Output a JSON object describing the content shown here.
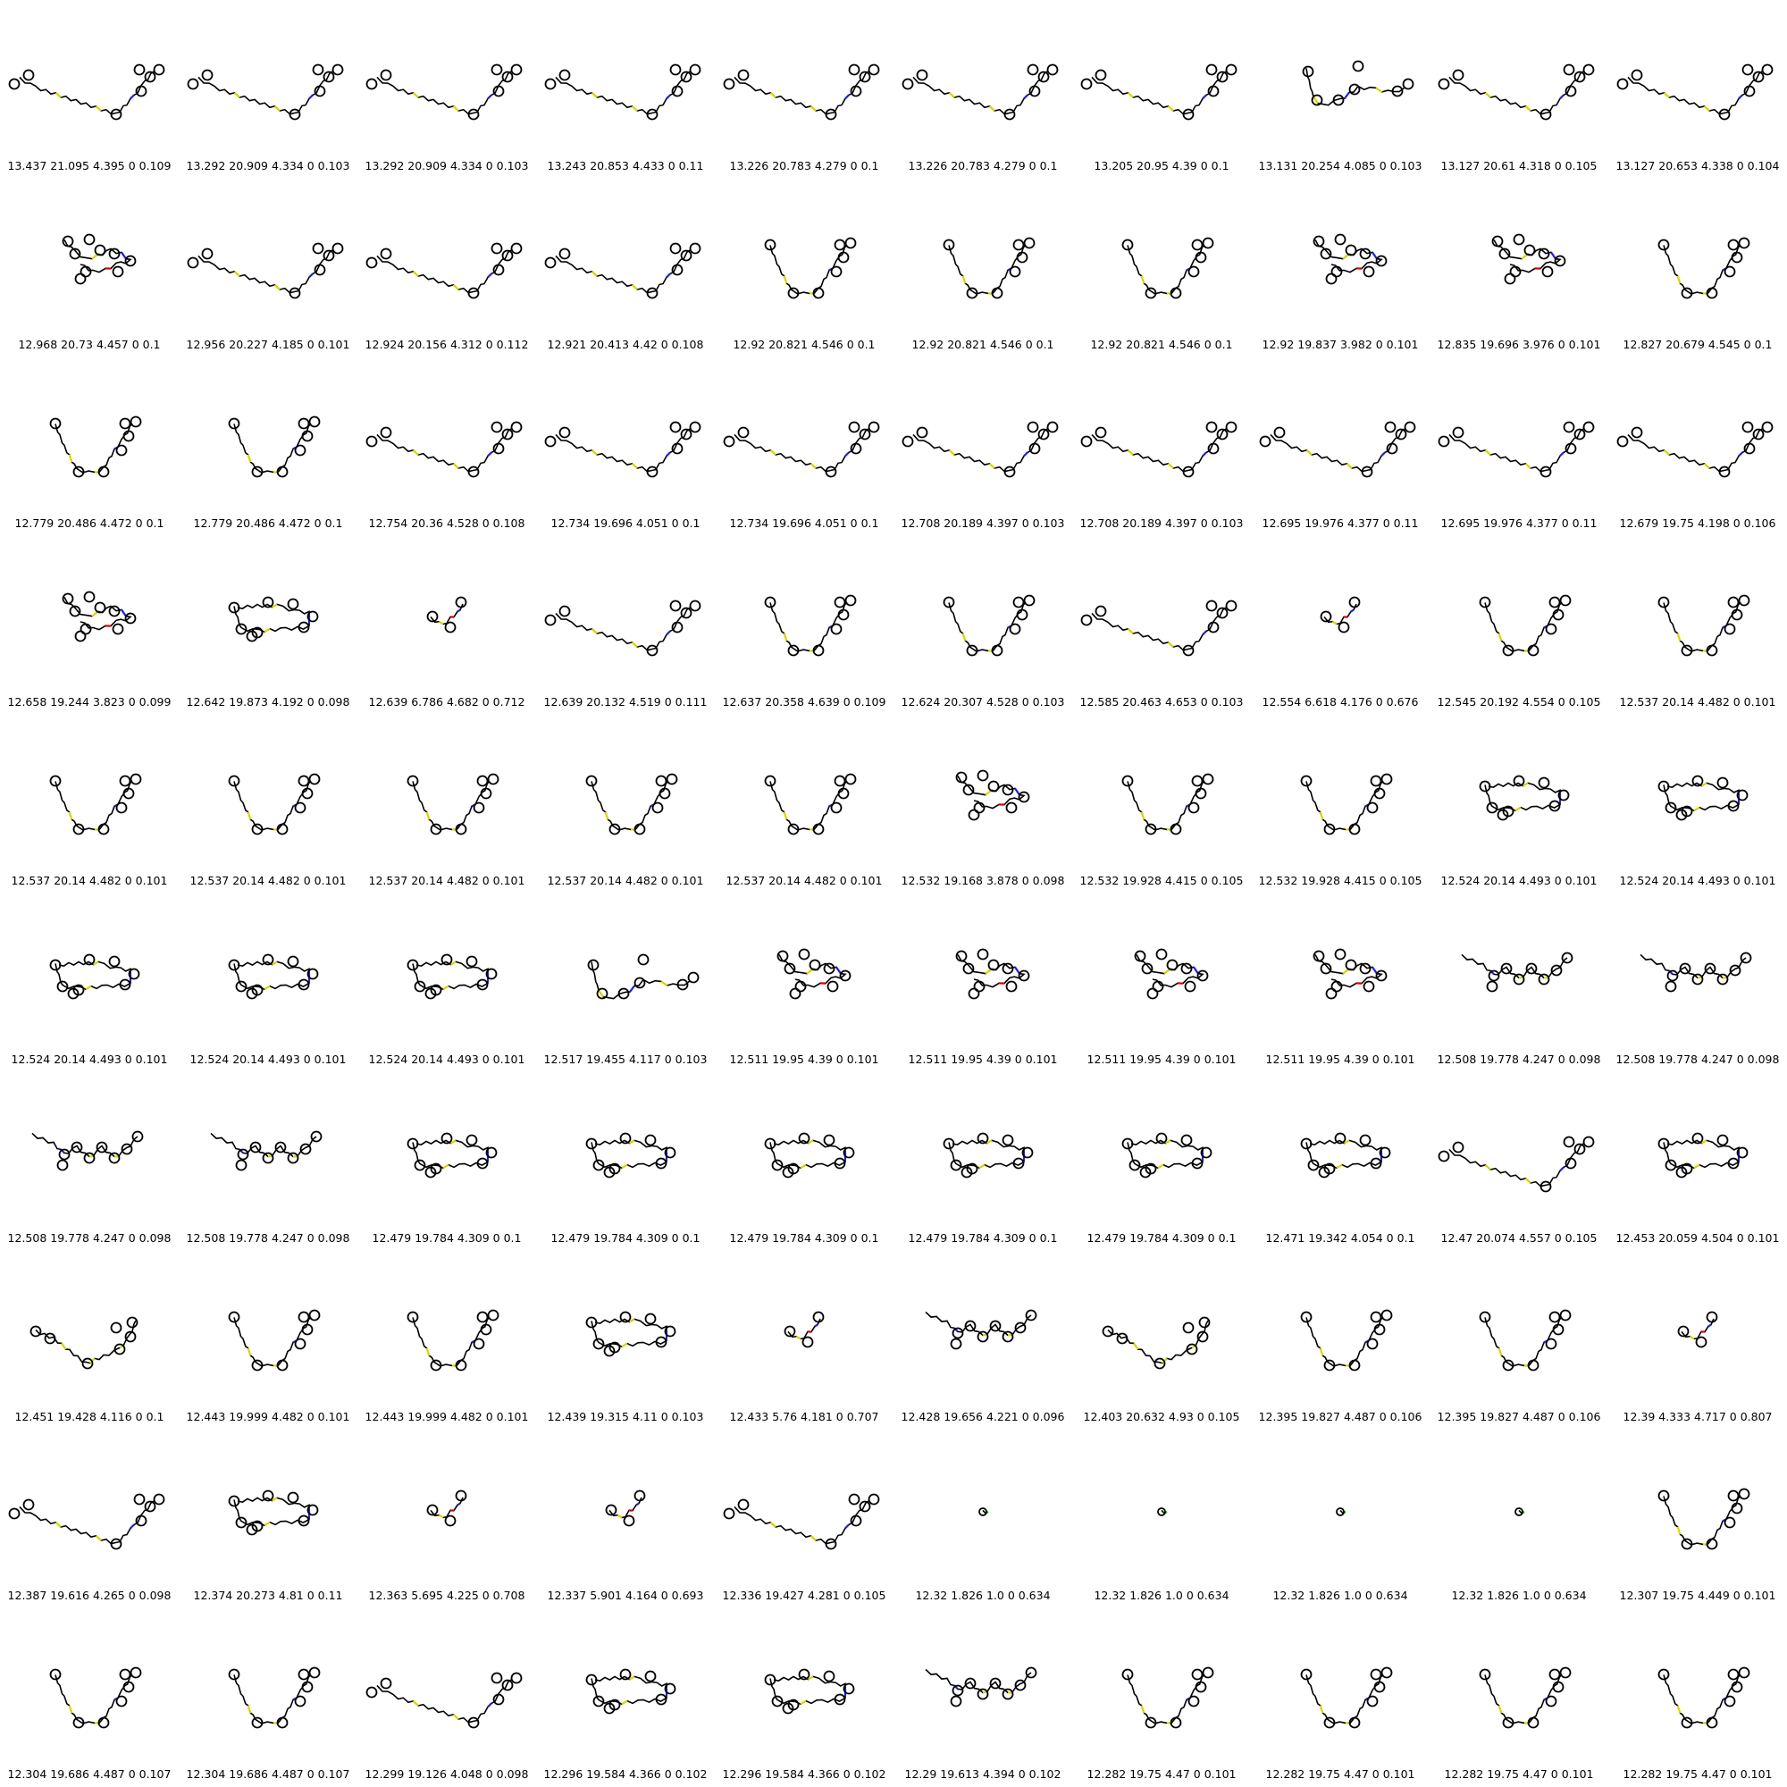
{
  "colors": {
    "bond": "#000000",
    "heteroatom_s": "#d6d600",
    "heteroatom_n": "#2020e0",
    "heteroatom_o": "#e00000",
    "heteroatom_cl": "#20c020",
    "background": "#ffffff"
  },
  "cells": [
    {
      "caption": "13.437 21.095 4.395 0 0.109",
      "shape": "line-v"
    },
    {
      "caption": "13.292 20.909 4.334 0 0.103",
      "shape": "line-v"
    },
    {
      "caption": "13.292 20.909 4.334 0 0.103",
      "shape": "line-v"
    },
    {
      "caption": "13.243 20.853 4.433 0 0.11",
      "shape": "line-v"
    },
    {
      "caption": "13.226 20.783 4.279 0 0.1",
      "shape": "line-v"
    },
    {
      "caption": "13.226 20.783 4.279 0 0.1",
      "shape": "line-v"
    },
    {
      "caption": "13.205 20.95 4.39 0 0.1",
      "shape": "line-v"
    },
    {
      "caption": "13.131 20.254 4.085 0 0.103",
      "shape": "loop"
    },
    {
      "caption": "13.127 20.61 4.318 0 0.105",
      "shape": "line-v"
    },
    {
      "caption": "13.127 20.653 4.338 0 0.104",
      "shape": "line-v"
    },
    {
      "caption": "12.968 20.73 4.457 0 0.1",
      "shape": "cluster"
    },
    {
      "caption": "12.956 20.227 4.185 0 0.101",
      "shape": "line-v"
    },
    {
      "caption": "12.924 20.156 4.312 0 0.112",
      "shape": "line-v"
    },
    {
      "caption": "12.921 20.413 4.42 0 0.108",
      "shape": "line-v"
    },
    {
      "caption": "12.92 20.821 4.546 0 0.1",
      "shape": "u"
    },
    {
      "caption": "12.92 20.821 4.546 0 0.1",
      "shape": "u"
    },
    {
      "caption": "12.92 20.821 4.546 0 0.1",
      "shape": "u"
    },
    {
      "caption": "12.92 19.837 3.982 0 0.101",
      "shape": "cluster"
    },
    {
      "caption": "12.835 19.696 3.976 0 0.101",
      "shape": "cluster"
    },
    {
      "caption": "12.827 20.679 4.545 0 0.1",
      "shape": "u"
    },
    {
      "caption": "12.779 20.486 4.472 0 0.1",
      "shape": "u"
    },
    {
      "caption": "12.779 20.486 4.472 0 0.1",
      "shape": "u"
    },
    {
      "caption": "12.754 20.36 4.528 0 0.108",
      "shape": "line-v"
    },
    {
      "caption": "12.734 19.696 4.051 0 0.1",
      "shape": "line-v"
    },
    {
      "caption": "12.734 19.696 4.051 0 0.1",
      "shape": "line-v"
    },
    {
      "caption": "12.708 20.189 4.397 0 0.103",
      "shape": "line-v"
    },
    {
      "caption": "12.708 20.189 4.397 0 0.103",
      "shape": "line-v"
    },
    {
      "caption": "12.695 19.976 4.377 0 0.11",
      "shape": "line-v"
    },
    {
      "caption": "12.695 19.976 4.377 0 0.11",
      "shape": "line-v"
    },
    {
      "caption": "12.679 19.75 4.198 0 0.106",
      "shape": "line-v"
    },
    {
      "caption": "12.658 19.244 3.823 0 0.099",
      "shape": "cluster"
    },
    {
      "caption": "12.642 19.873 4.192 0 0.098",
      "shape": "rect"
    },
    {
      "caption": "12.639 6.786 4.682 0 0.712",
      "shape": "small"
    },
    {
      "caption": "12.639 20.132 4.519 0 0.111",
      "shape": "line-v"
    },
    {
      "caption": "12.637 20.358 4.639 0 0.109",
      "shape": "u"
    },
    {
      "caption": "12.624 20.307 4.528 0 0.103",
      "shape": "u"
    },
    {
      "caption": "12.585 20.463 4.653 0 0.103",
      "shape": "line-v"
    },
    {
      "caption": "12.554 6.618 4.176 0 0.676",
      "shape": "small"
    },
    {
      "caption": "12.545 20.192 4.554 0 0.105",
      "shape": "u"
    },
    {
      "caption": "12.537 20.14 4.482 0 0.101",
      "shape": "u"
    },
    {
      "caption": "12.537 20.14 4.482 0 0.101",
      "shape": "u"
    },
    {
      "caption": "12.537 20.14 4.482 0 0.101",
      "shape": "u"
    },
    {
      "caption": "12.537 20.14 4.482 0 0.101",
      "shape": "u"
    },
    {
      "caption": "12.537 20.14 4.482 0 0.101",
      "shape": "u"
    },
    {
      "caption": "12.537 20.14 4.482 0 0.101",
      "shape": "u"
    },
    {
      "caption": "12.532 19.168 3.878 0 0.098",
      "shape": "cluster"
    },
    {
      "caption": "12.532 19.928 4.415 0 0.105",
      "shape": "u"
    },
    {
      "caption": "12.532 19.928 4.415 0 0.105",
      "shape": "u"
    },
    {
      "caption": "12.524 20.14 4.493 0 0.101",
      "shape": "rect"
    },
    {
      "caption": "12.524 20.14 4.493 0 0.101",
      "shape": "rect"
    },
    {
      "caption": "12.524 20.14 4.493 0 0.101",
      "shape": "rect"
    },
    {
      "caption": "12.524 20.14 4.493 0 0.101",
      "shape": "rect"
    },
    {
      "caption": "12.524 20.14 4.493 0 0.101",
      "shape": "rect"
    },
    {
      "caption": "12.517 19.455 4.117 0 0.103",
      "shape": "loop"
    },
    {
      "caption": "12.511 19.95 4.39 0 0.101",
      "shape": "cluster"
    },
    {
      "caption": "12.511 19.95 4.39 0 0.101",
      "shape": "cluster"
    },
    {
      "caption": "12.511 19.95 4.39 0 0.101",
      "shape": "cluster"
    },
    {
      "caption": "12.511 19.95 4.39 0 0.101",
      "shape": "cluster"
    },
    {
      "caption": "12.508 19.778 4.247 0 0.098",
      "shape": "zigzag"
    },
    {
      "caption": "12.508 19.778 4.247 0 0.098",
      "shape": "zigzag"
    },
    {
      "caption": "12.508 19.778 4.247 0 0.098",
      "shape": "zigzag"
    },
    {
      "caption": "12.508 19.778 4.247 0 0.098",
      "shape": "zigzag"
    },
    {
      "caption": "12.479 19.784 4.309 0 0.1",
      "shape": "rect"
    },
    {
      "caption": "12.479 19.784 4.309 0 0.1",
      "shape": "rect"
    },
    {
      "caption": "12.479 19.784 4.309 0 0.1",
      "shape": "rect"
    },
    {
      "caption": "12.479 19.784 4.309 0 0.1",
      "shape": "rect"
    },
    {
      "caption": "12.479 19.784 4.309 0 0.1",
      "shape": "rect"
    },
    {
      "caption": "12.471 19.342 4.054 0 0.1",
      "shape": "rect"
    },
    {
      "caption": "12.47 20.074 4.557 0 0.105",
      "shape": "line-v"
    },
    {
      "caption": "12.453 20.059 4.504 0 0.101",
      "shape": "rect"
    },
    {
      "caption": "12.451 19.428 4.116 0 0.1",
      "shape": "v"
    },
    {
      "caption": "12.443 19.999 4.482 0 0.101",
      "shape": "u"
    },
    {
      "caption": "12.443 19.999 4.482 0 0.101",
      "shape": "u"
    },
    {
      "caption": "12.439 19.315 4.11 0 0.103",
      "shape": "rect"
    },
    {
      "caption": "12.433 5.76 4.181 0 0.707",
      "shape": "small"
    },
    {
      "caption": "12.428 19.656 4.221 0 0.096",
      "shape": "zigzag"
    },
    {
      "caption": "12.403 20.632 4.93 0 0.105",
      "shape": "v"
    },
    {
      "caption": "12.395 19.827 4.487 0 0.106",
      "shape": "u"
    },
    {
      "caption": "12.395 19.827 4.487 0 0.106",
      "shape": "u"
    },
    {
      "caption": "12.39 4.333 4.717 0 0.807",
      "shape": "small"
    },
    {
      "caption": "12.387 19.616 4.265 0 0.098",
      "shape": "line-v"
    },
    {
      "caption": "12.374 20.273 4.81 0 0.11",
      "shape": "rect"
    },
    {
      "caption": "12.363 5.695 4.225 0 0.708",
      "shape": "small"
    },
    {
      "caption": "12.337 5.901 4.164 0 0.693",
      "shape": "small"
    },
    {
      "caption": "12.336 19.427 4.281 0 0.105",
      "shape": "line-v"
    },
    {
      "caption": "12.32 1.826 1.0 0 0.634",
      "shape": "dot"
    },
    {
      "caption": "12.32 1.826 1.0 0 0.634",
      "shape": "dot"
    },
    {
      "caption": "12.32 1.826 1.0 0 0.634",
      "shape": "dot"
    },
    {
      "caption": "12.32 1.826 1.0 0 0.634",
      "shape": "dot"
    },
    {
      "caption": "12.307 19.75 4.449 0 0.101",
      "shape": "u"
    },
    {
      "caption": "12.304 19.686 4.487 0 0.107",
      "shape": "u"
    },
    {
      "caption": "12.304 19.686 4.487 0 0.107",
      "shape": "u"
    },
    {
      "caption": "12.299 19.126 4.048 0 0.098",
      "shape": "line-v"
    },
    {
      "caption": "12.296 19.584 4.366 0 0.102",
      "shape": "rect"
    },
    {
      "caption": "12.296 19.584 4.366 0 0.102",
      "shape": "rect"
    },
    {
      "caption": "12.29 19.613 4.394 0 0.102",
      "shape": "zigzag"
    },
    {
      "caption": "12.282 19.75 4.47 0 0.101",
      "shape": "u"
    },
    {
      "caption": "12.282 19.75 4.47 0 0.101",
      "shape": "u"
    },
    {
      "caption": "12.282 19.75 4.47 0 0.101",
      "shape": "u"
    },
    {
      "caption": "12.282 19.75 4.47 0 0.101",
      "shape": "u"
    }
  ]
}
